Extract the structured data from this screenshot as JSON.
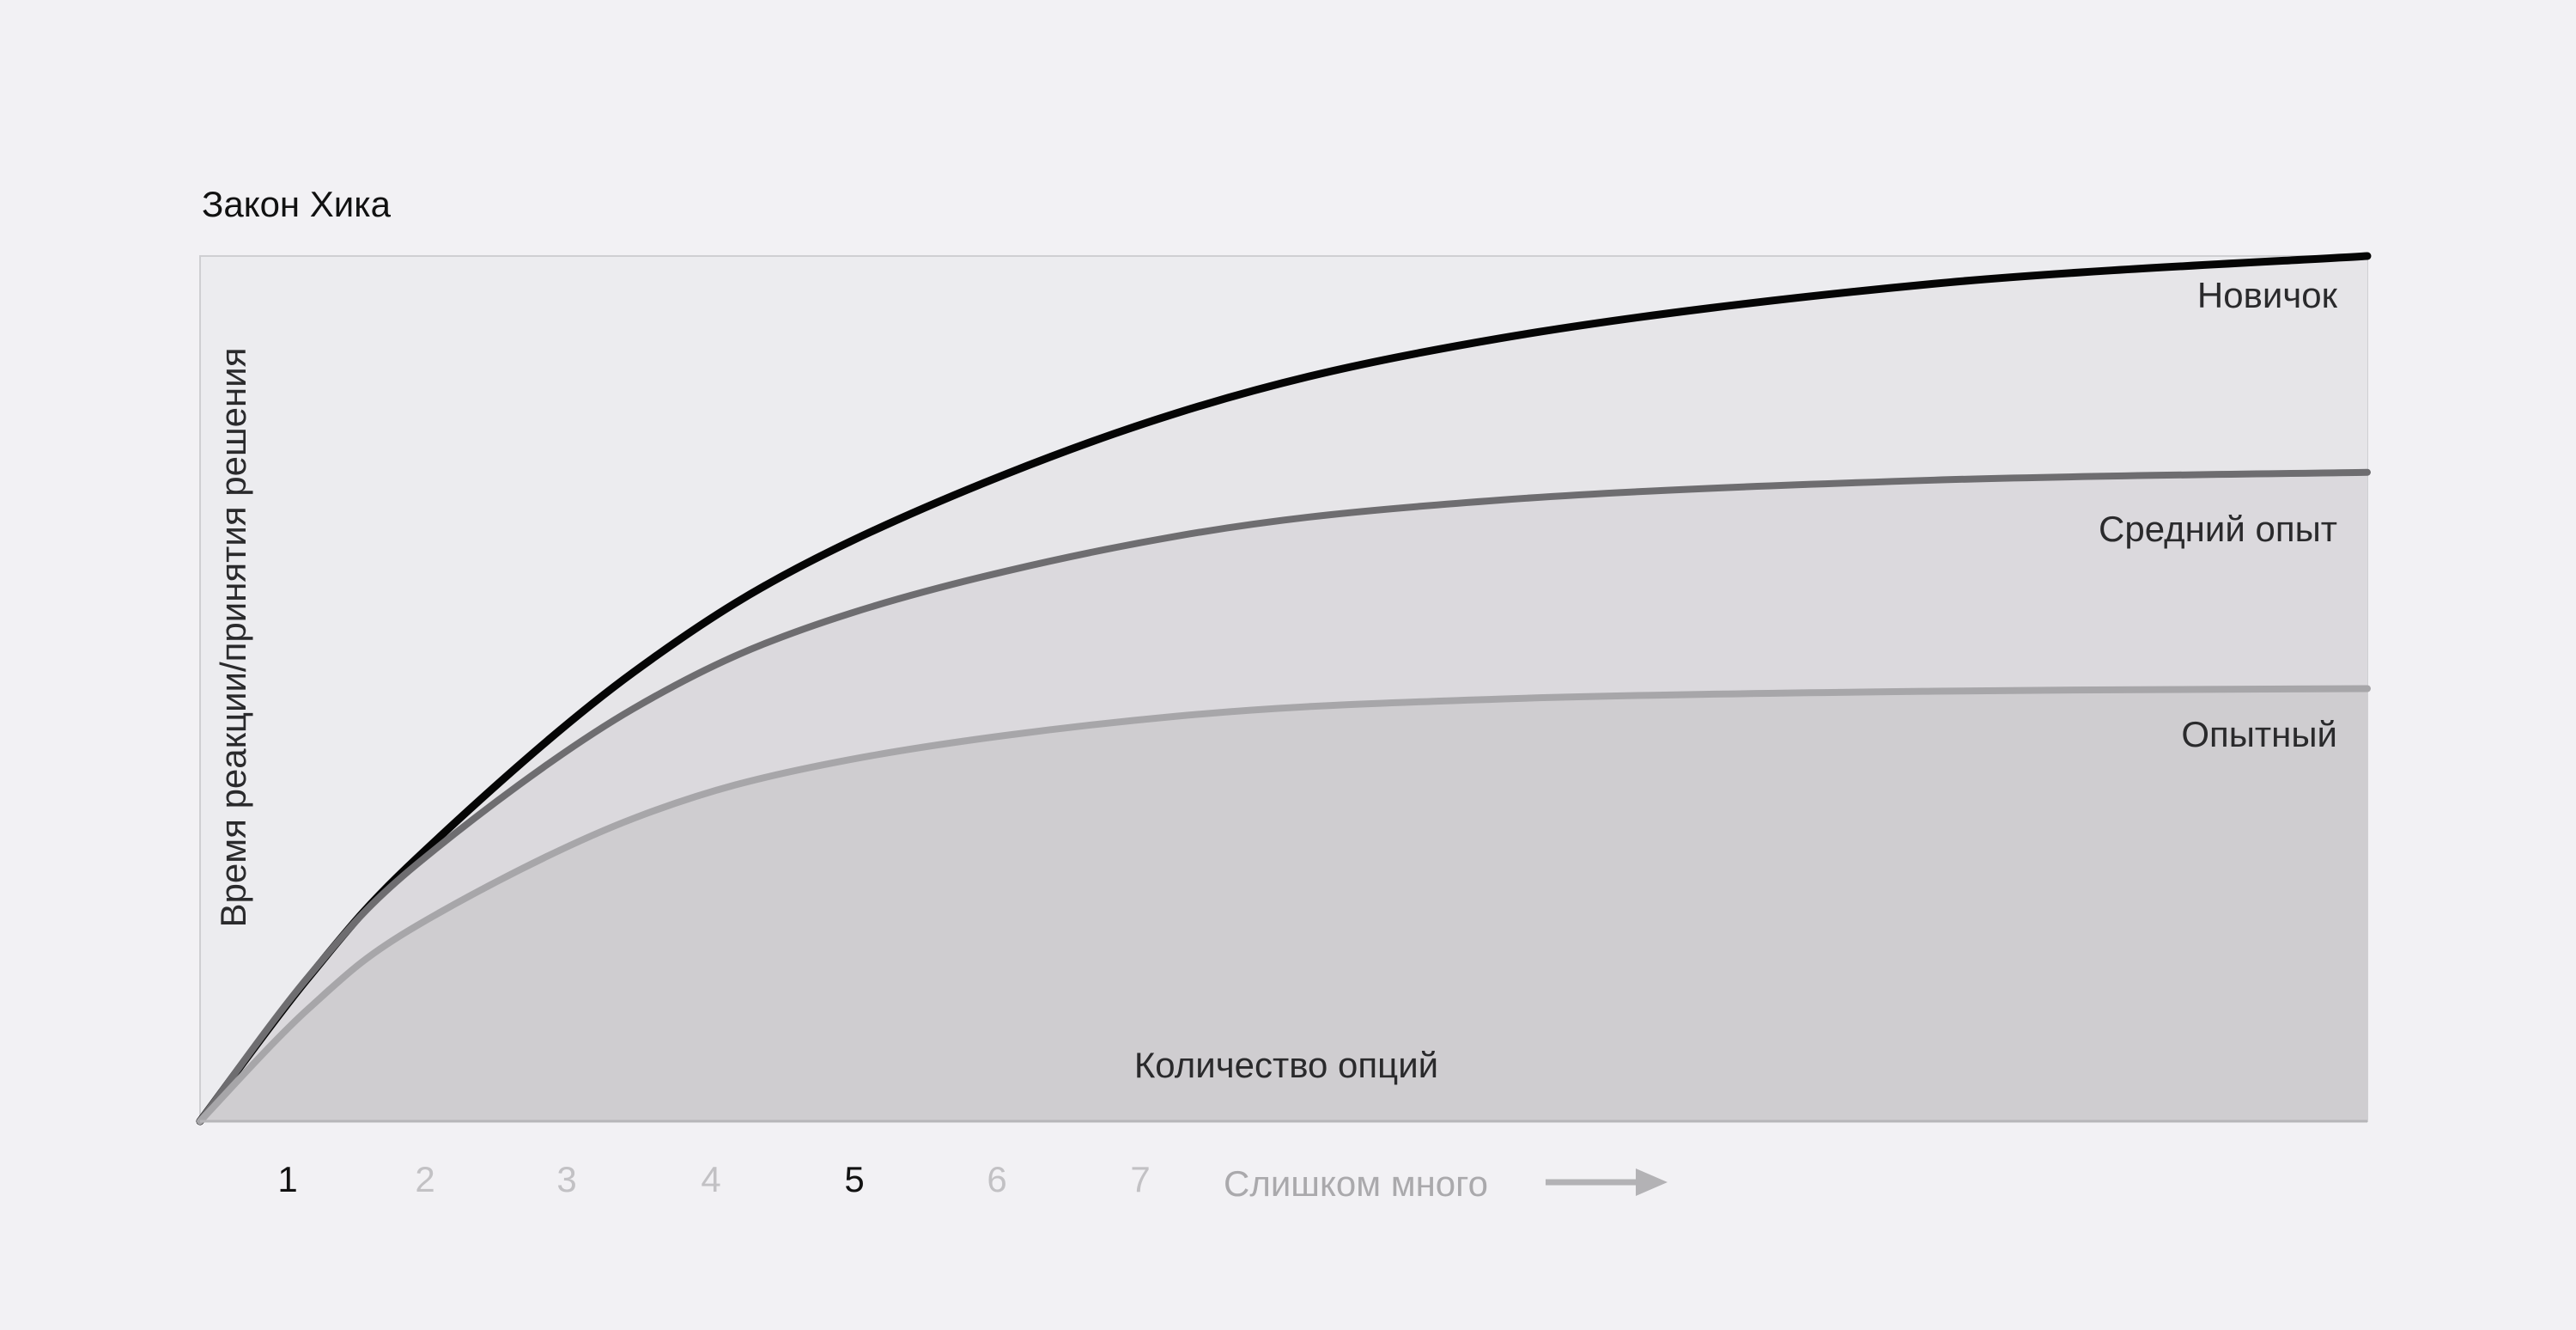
{
  "chart_data": {
    "type": "area",
    "title": "Закон Хика",
    "xlabel": "Количество опций",
    "ylabel": "Время реакции/принятия решения",
    "x_ticks": [
      {
        "label": "1",
        "value": 1,
        "highlighted": true
      },
      {
        "label": "2",
        "value": 2,
        "highlighted": false
      },
      {
        "label": "3",
        "value": 3,
        "highlighted": false
      },
      {
        "label": "4",
        "value": 4,
        "highlighted": false
      },
      {
        "label": "5",
        "value": 5,
        "highlighted": true
      },
      {
        "label": "6",
        "value": 6,
        "highlighted": false
      },
      {
        "label": "7",
        "value": 7,
        "highlighted": false
      }
    ],
    "x_overflow_label": "Слишком много",
    "xlim": [
      0.4,
      15.6
    ],
    "ylim": [
      0,
      1
    ],
    "grid": false,
    "x": [
      0.4,
      1.16,
      1.92,
      3.44,
      4.96,
      7.24,
      9.52,
      12.56,
      15.6
    ],
    "series": [
      {
        "name": "Новичок",
        "color": "#050505",
        "fill": "#e6e5e8",
        "values": [
          0,
          0.166,
          0.304,
          0.519,
          0.67,
          0.818,
          0.905,
          0.968,
          1.0
        ]
      },
      {
        "name": "Средний опыт",
        "color": "#6e6d70",
        "fill": "#dbd9dd",
        "values": [
          0,
          0.167,
          0.297,
          0.477,
          0.587,
          0.676,
          0.718,
          0.741,
          0.75
        ]
      },
      {
        "name": "Опытный",
        "color": "#a7a6a9",
        "fill": "#cfcdd0",
        "values": [
          0,
          0.13,
          0.226,
          0.35,
          0.418,
          0.468,
          0.488,
          0.497,
          0.5
        ]
      }
    ],
    "colors": {
      "background": "#f2f1f4",
      "tick_highlight": "#111111",
      "tick_muted": "#c2c1c4",
      "overflow": "#aaa9ac"
    }
  }
}
